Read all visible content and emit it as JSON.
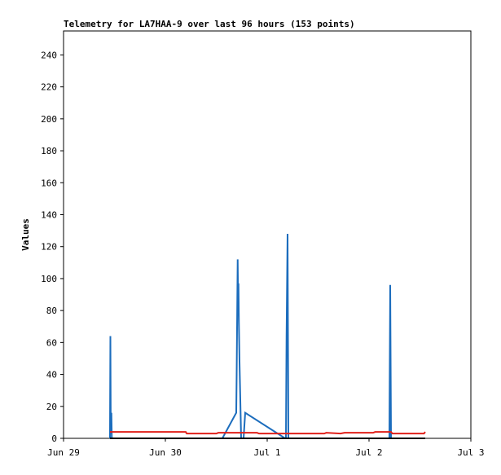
{
  "chart_data": {
    "type": "line",
    "title": "Telemetry for LA7HAA-9 over last 96 hours (153 points)",
    "y_label": "Values",
    "xlim": [
      0,
      4
    ],
    "xticks": [
      {
        "value": 0,
        "label": "Jun 29"
      },
      {
        "value": 1,
        "label": "Jun 30"
      },
      {
        "value": 2,
        "label": "Jul 1"
      },
      {
        "value": 3,
        "label": "Jul 2"
      },
      {
        "value": 4,
        "label": "Jul 3"
      }
    ],
    "ylim": [
      0,
      255
    ],
    "yticks": [
      0,
      20,
      40,
      60,
      80,
      100,
      120,
      140,
      160,
      180,
      200,
      220,
      240
    ],
    "series": [
      {
        "color": "#1c6dbd",
        "x": [
          0.456,
          0.46,
          0.464,
          0.47,
          0.474,
          1.56,
          1.696,
          1.7,
          1.71,
          1.714,
          1.718,
          1.722,
          1.728,
          1.744,
          1.768,
          1.784,
          2.176,
          2.184,
          2.19,
          2.2,
          2.208,
          3.2,
          3.208,
          3.216,
          3.552
        ],
        "values": [
          0,
          64,
          3,
          16,
          0,
          0,
          16,
          40,
          112,
          88,
          97,
          72,
          48,
          0,
          0,
          16,
          0,
          0,
          64,
          128,
          0,
          0,
          96,
          0,
          0
        ]
      },
      {
        "color": "#e0201a",
        "x": [
          0.456,
          1.2,
          1.21,
          1.5,
          1.52,
          1.9,
          1.92,
          2.56,
          2.58,
          2.72,
          2.76,
          3.04,
          3.06,
          3.216,
          3.23,
          3.54,
          3.552
        ],
        "values": [
          4,
          4,
          3,
          3,
          3.5,
          3.5,
          3,
          3,
          3.5,
          3,
          3.5,
          3.5,
          4,
          4,
          3,
          3,
          4
        ]
      },
      {
        "color": "#000000",
        "x": [
          0.456,
          3.552
        ],
        "values": [
          0,
          0
        ]
      }
    ]
  }
}
